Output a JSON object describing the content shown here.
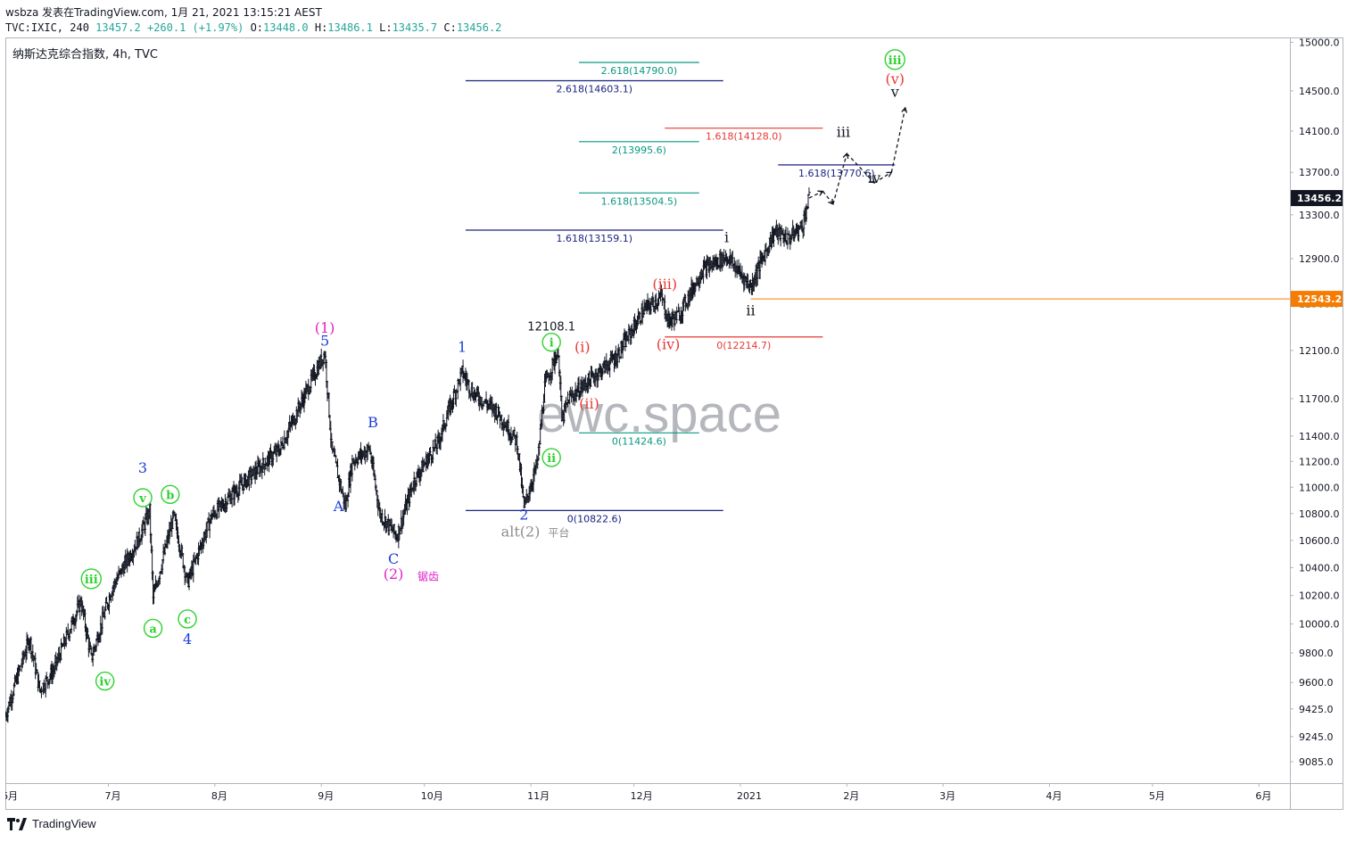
{
  "header": {
    "line1": "wsbza 发表在TradingView.com, 1月 21, 2021 13:15:21 AEST",
    "symbol": "TVC:IXIC, 240",
    "last": "13457.2",
    "change": "+260.1 (+1.97%)",
    "o_label": "O:",
    "o": "13448.0",
    "h_label": "H:",
    "h": "13486.1",
    "l_label": "L:",
    "l": "13435.7",
    "c_label": "C:",
    "c": "13456.2"
  },
  "footer": {
    "brand": "TradingView"
  },
  "chart_data": {
    "type": "ohlc",
    "title": "纳斯达克综合指数, 4h, TVC",
    "watermark": "ewc.space",
    "y_ticks": [
      15000.0,
      14500.0,
      14100.0,
      13700.0,
      13300.0,
      12900.0,
      12500.0,
      12100.0,
      11700.0,
      11400.0,
      11200.0,
      11000.0,
      10800.0,
      10600.0,
      10400.0,
      10200.0,
      10000.0,
      9800.0,
      9600.0,
      9425.0,
      9245.0,
      9085.0
    ],
    "y_range": [
      8950,
      15050
    ],
    "x_range": [
      "2020-06-01",
      "2021-06-10"
    ],
    "x_ticks": [
      {
        "date": "2020-06-01",
        "label": "6月"
      },
      {
        "date": "2020-07-01",
        "label": "7月"
      },
      {
        "date": "2020-08-01",
        "label": "8月"
      },
      {
        "date": "2020-09-01",
        "label": "9月"
      },
      {
        "date": "2020-10-01",
        "label": "10月"
      },
      {
        "date": "2020-11-01",
        "label": "11月"
      },
      {
        "date": "2020-12-01",
        "label": "12月"
      },
      {
        "date": "2021-01-01",
        "label": "2021"
      },
      {
        "date": "2021-02-01",
        "label": "2月"
      },
      {
        "date": "2021-03-01",
        "label": "3月"
      },
      {
        "date": "2021-04-01",
        "label": "4月"
      },
      {
        "date": "2021-05-01",
        "label": "5月"
      },
      {
        "date": "2021-06-01",
        "label": "6月"
      }
    ],
    "price_path": [
      [
        "2020-06-01",
        9380
      ],
      [
        "2020-06-08",
        9900
      ],
      [
        "2020-06-11",
        9550
      ],
      [
        "2020-06-15",
        9680
      ],
      [
        "2020-06-23",
        10160
      ],
      [
        "2020-06-26",
        9760
      ],
      [
        "2020-07-02",
        10250
      ],
      [
        "2020-07-10",
        10620
      ],
      [
        "2020-07-13",
        10820
      ],
      [
        "2020-07-14",
        10180
      ],
      [
        "2020-07-20",
        10780
      ],
      [
        "2020-07-24",
        10290
      ],
      [
        "2020-07-31",
        10780
      ],
      [
        "2020-08-10",
        11050
      ],
      [
        "2020-08-20",
        11300
      ],
      [
        "2020-09-02",
        12080
      ],
      [
        "2020-09-04",
        11300
      ],
      [
        "2020-09-08",
        10850
      ],
      [
        "2020-09-10",
        11200
      ],
      [
        "2020-09-15",
        11300
      ],
      [
        "2020-09-18",
        10800
      ],
      [
        "2020-09-23",
        10630
      ],
      [
        "2020-09-28",
        11050
      ],
      [
        "2020-10-05",
        11350
      ],
      [
        "2020-10-12",
        11920
      ],
      [
        "2020-10-15",
        11750
      ],
      [
        "2020-10-22",
        11600
      ],
      [
        "2020-10-28",
        11350
      ],
      [
        "2020-10-30",
        10840
      ],
      [
        "2020-11-03",
        11200
      ],
      [
        "2020-11-05",
        11800
      ],
      [
        "2020-11-09",
        12108
      ],
      [
        "2020-11-10",
        11520
      ],
      [
        "2020-11-12",
        11700
      ],
      [
        "2020-11-20",
        11900
      ],
      [
        "2020-11-26",
        12050
      ],
      [
        "2020-12-04",
        12450
      ],
      [
        "2020-12-09",
        12560
      ],
      [
        "2020-12-11",
        12350
      ],
      [
        "2020-12-14",
        12400
      ],
      [
        "2020-12-21",
        12800
      ],
      [
        "2020-12-28",
        12920
      ],
      [
        "2021-01-04",
        12650
      ],
      [
        "2021-01-06",
        12800
      ],
      [
        "2021-01-11",
        13150
      ],
      [
        "2021-01-15",
        13080
      ],
      [
        "2021-01-19",
        13200
      ],
      [
        "2021-01-21",
        13456.2
      ]
    ],
    "projection": [
      [
        "2021-01-21",
        13456.2
      ],
      [
        "2021-01-25",
        13520
      ],
      [
        "2021-01-28",
        13400
      ],
      [
        "2021-02-01",
        13880
      ],
      [
        "2021-02-09",
        13600
      ],
      [
        "2021-02-14",
        13700
      ],
      [
        "2021-02-18",
        14330
      ]
    ],
    "price_tags": [
      {
        "value": 13456.2,
        "label": "13456.2",
        "color": "#131722"
      },
      {
        "value": 12543.2,
        "label": "12543.2",
        "color": "#f57c00"
      }
    ],
    "hlines": [
      {
        "value": 12543.2,
        "from": "2021-01-04",
        "to": "2021-06-10",
        "color": "#f57c00"
      }
    ],
    "fib_levels": [
      {
        "value": 14790.0,
        "label": "2.618(14790.0)",
        "from": "2020-11-15",
        "to": "2020-12-20",
        "color": "#089981"
      },
      {
        "value": 14603.1,
        "label": "2.618(14603.1)",
        "from": "2020-10-13",
        "to": "2020-12-27",
        "color": "#1a237e"
      },
      {
        "value": 14128.0,
        "label": "1.618(14128.0)",
        "from": "2020-12-10",
        "to": "2021-01-25",
        "color": "#e53935"
      },
      {
        "value": 13995.6,
        "label": "2(13995.6)",
        "from": "2020-11-15",
        "to": "2020-12-20",
        "color": "#089981"
      },
      {
        "value": 13770.6,
        "label": "1.618(13770.6)",
        "from": "2021-01-12",
        "to": "2021-02-15",
        "color": "#1a237e"
      },
      {
        "value": 13504.5,
        "label": "1.618(13504.5)",
        "from": "2020-11-15",
        "to": "2020-12-20",
        "color": "#089981"
      },
      {
        "value": 13159.1,
        "label": "1.618(13159.1)",
        "from": "2020-10-13",
        "to": "2020-12-27",
        "color": "#1a237e"
      },
      {
        "value": 12214.7,
        "label": "0(12214.7)",
        "from": "2020-12-10",
        "to": "2021-01-25",
        "color": "#e53935"
      },
      {
        "value": 11424.6,
        "label": "0(11424.6)",
        "from": "2020-11-15",
        "to": "2020-12-20",
        "color": "#089981"
      },
      {
        "value": 10822.6,
        "label": "0(10822.6)",
        "from": "2020-10-13",
        "to": "2020-12-27",
        "color": "#1a237e"
      }
    ],
    "annotations": [
      {
        "text": "3",
        "date": "2020-07-11",
        "price": 11110,
        "color": "#1a3fd6",
        "style": "plain"
      },
      {
        "text": "v",
        "date": "2020-07-11",
        "price": 10920,
        "color": "#2ed12e",
        "style": "circle"
      },
      {
        "text": "b",
        "date": "2020-07-19",
        "price": 10945,
        "color": "#2ed12e",
        "style": "circle"
      },
      {
        "text": "iii",
        "date": "2020-06-26",
        "price": 10320,
        "color": "#2ed12e",
        "style": "circle"
      },
      {
        "text": "a",
        "date": "2020-07-14",
        "price": 9970,
        "color": "#2ed12e",
        "style": "circle"
      },
      {
        "text": "c",
        "date": "2020-07-24",
        "price": 10035,
        "color": "#2ed12e",
        "style": "circle"
      },
      {
        "text": "4",
        "date": "2020-07-24",
        "price": 9860,
        "color": "#1a3fd6",
        "style": "plain"
      },
      {
        "text": "iv",
        "date": "2020-06-30",
        "price": 9610,
        "color": "#2ed12e",
        "style": "circle"
      },
      {
        "text": "(1)",
        "date": "2020-09-02",
        "price": 12250,
        "color": "#e020c8",
        "style": "plain"
      },
      {
        "text": "5",
        "date": "2020-09-02",
        "price": 12140,
        "color": "#1a3fd6",
        "style": "plain"
      },
      {
        "text": "B",
        "date": "2020-09-16",
        "price": 11470,
        "color": "#1a3fd6",
        "style": "plain"
      },
      {
        "text": "A",
        "date": "2020-09-06",
        "price": 10820,
        "color": "#1a3fd6",
        "style": "plain"
      },
      {
        "text": "C",
        "date": "2020-09-22",
        "price": 10430,
        "color": "#1a3fd6",
        "style": "plain"
      },
      {
        "text": "(2)",
        "date": "2020-09-22",
        "price": 10320,
        "color": "#e020c8",
        "style": "plain"
      },
      {
        "text": "锯齿",
        "date": "2020-09-29",
        "price": 10310,
        "color": "#e020c8",
        "style": "small"
      },
      {
        "text": "1",
        "date": "2020-10-12",
        "price": 12090,
        "color": "#1a3fd6",
        "style": "plain"
      },
      {
        "text": "2",
        "date": "2020-10-30",
        "price": 10755,
        "color": "#1a3fd6",
        "style": "plain"
      },
      {
        "text": "alt(2)",
        "date": "2020-10-29",
        "price": 10630,
        "color": "#8c8c8c",
        "style": "plain"
      },
      {
        "text": "平台",
        "date": "2020-11-06",
        "price": 10630,
        "color": "#8c8c8c",
        "style": "small"
      },
      {
        "text": "12108.1",
        "date": "2020-11-07",
        "price": 12270,
        "color": "#131722",
        "style": "price"
      },
      {
        "text": "i",
        "date": "2020-11-07",
        "price": 12170,
        "color": "#2ed12e",
        "style": "circle"
      },
      {
        "text": "ii",
        "date": "2020-11-07",
        "price": 11230,
        "color": "#2ed12e",
        "style": "circle"
      },
      {
        "text": "(i)",
        "date": "2020-11-16",
        "price": 12090,
        "color": "#e53935",
        "style": "plain"
      },
      {
        "text": "(ii)",
        "date": "2020-11-18",
        "price": 11620,
        "color": "#e53935",
        "style": "plain"
      },
      {
        "text": "(iii)",
        "date": "2020-12-10",
        "price": 12630,
        "color": "#e53935",
        "style": "plain"
      },
      {
        "text": "(iv)",
        "date": "2020-12-11",
        "price": 12110,
        "color": "#e53935",
        "style": "plain"
      },
      {
        "text": "i",
        "date": "2020-12-28",
        "price": 13050,
        "color": "#131722",
        "style": "plain"
      },
      {
        "text": "ii",
        "date": "2021-01-04",
        "price": 12400,
        "color": "#131722",
        "style": "plain"
      },
      {
        "text": "iii",
        "date": "2021-01-31",
        "price": 14040,
        "color": "#131722",
        "style": "plain"
      },
      {
        "text": "iv",
        "date": "2021-02-09",
        "price": 13600,
        "color": "#131722",
        "style": "plain"
      },
      {
        "text": "v",
        "date": "2021-02-15",
        "price": 14440,
        "color": "#131722",
        "style": "plain"
      },
      {
        "text": "(v)",
        "date": "2021-02-15",
        "price": 14570,
        "color": "#e53935",
        "style": "plain"
      },
      {
        "text": "iii",
        "date": "2021-02-15",
        "price": 14820,
        "color": "#2ed12e",
        "style": "circle"
      }
    ],
    "grid": false,
    "legend": "none"
  }
}
